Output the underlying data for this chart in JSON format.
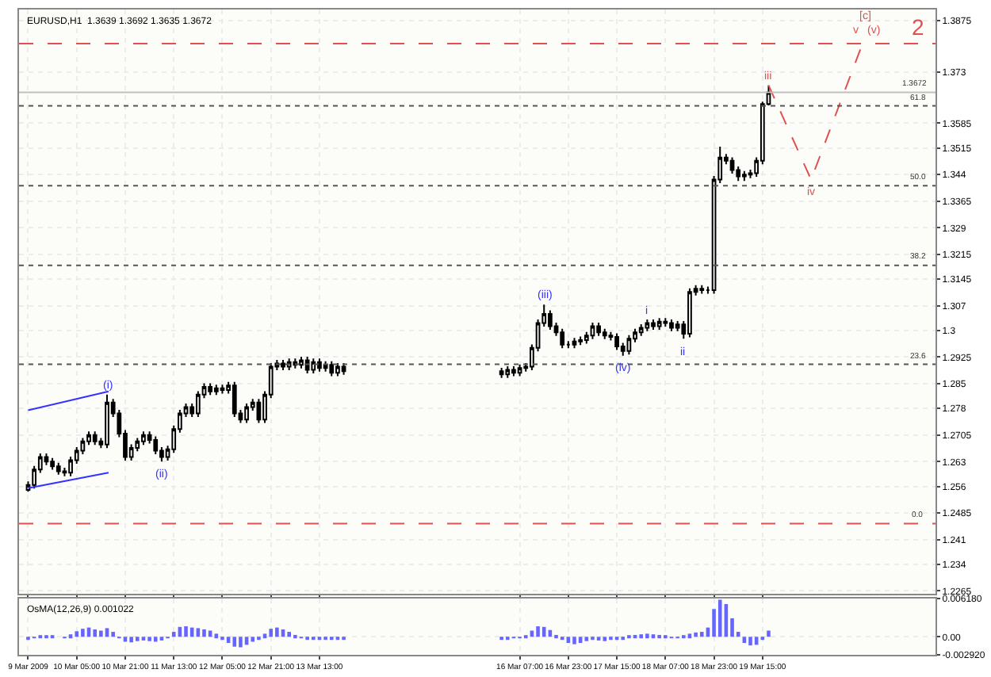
{
  "chart_data": [
    {
      "type": "candlestick",
      "title": "EURUSD,H1  1.3639 1.3692 1.3635 1.3672",
      "color": "#000000",
      "x": [
        "2009-03-09T13:00",
        "2009-03-09T15:00",
        "2009-03-09T17:00",
        "2009-03-09T19:00",
        "2009-03-09T21:00",
        "2009-03-09T23:00",
        "2009-03-10T01:00",
        "2009-03-10T03:00",
        "2009-03-10T05:00",
        "2009-03-10T07:00",
        "2009-03-10T09:00",
        "2009-03-10T11:00",
        "2009-03-10T13:00",
        "2009-03-10T15:00",
        "2009-03-10T17:00",
        "2009-03-10T19:00",
        "2009-03-10T21:00",
        "2009-03-10T23:00",
        "2009-03-11T01:00",
        "2009-03-11T03:00",
        "2009-03-11T05:00",
        "2009-03-11T07:00",
        "2009-03-11T09:00",
        "2009-03-11T11:00",
        "2009-03-11T13:00",
        "2009-03-11T15:00",
        "2009-03-11T17:00",
        "2009-03-11T19:00",
        "2009-03-11T21:00",
        "2009-03-11T23:00",
        "2009-03-12T01:00",
        "2009-03-12T03:00",
        "2009-03-12T05:00",
        "2009-03-12T07:00",
        "2009-03-12T09:00",
        "2009-03-12T11:00",
        "2009-03-12T13:00",
        "2009-03-12T15:00",
        "2009-03-12T17:00",
        "2009-03-12T19:00",
        "2009-03-12T21:00",
        "2009-03-12T23:00",
        "2009-03-13T01:00",
        "2009-03-13T03:00",
        "2009-03-13T05:00",
        "2009-03-13T07:00",
        "2009-03-13T09:00",
        "2009-03-13T11:00",
        "2009-03-13T13:00",
        "2009-03-13T15:00",
        "2009-03-13T17:00",
        "2009-03-13T19:00",
        "2009-03-13T21:00",
        "2009-03-16T01:00",
        "2009-03-16T03:00",
        "2009-03-16T05:00",
        "2009-03-16T07:00",
        "2009-03-16T09:00",
        "2009-03-16T11:00",
        "2009-03-16T13:00",
        "2009-03-16T15:00",
        "2009-03-16T17:00",
        "2009-03-16T19:00",
        "2009-03-16T21:00",
        "2009-03-16T23:00",
        "2009-03-17T01:00",
        "2009-03-17T03:00",
        "2009-03-17T05:00",
        "2009-03-17T07:00",
        "2009-03-17T09:00",
        "2009-03-17T11:00",
        "2009-03-17T13:00",
        "2009-03-17T15:00",
        "2009-03-17T17:00",
        "2009-03-17T19:00",
        "2009-03-17T21:00",
        "2009-03-17T23:00",
        "2009-03-18T01:00",
        "2009-03-18T03:00",
        "2009-03-18T05:00",
        "2009-03-18T07:00",
        "2009-03-18T09:00",
        "2009-03-18T11:00",
        "2009-03-18T13:00",
        "2009-03-18T15:00",
        "2009-03-18T17:00",
        "2009-03-18T19:00",
        "2009-03-18T21:00",
        "2009-03-18T23:00",
        "2009-03-19T01:00",
        "2009-03-19T03:00",
        "2009-03-19T05:00",
        "2009-03-19T07:00",
        "2009-03-19T09:00",
        "2009-03-19T11:00",
        "2009-03-19T13:00",
        "2009-03-19T15:00",
        "2009-03-19T17:00"
      ],
      "ohlc": [
        [
          1.255,
          1.2574,
          1.2545,
          1.2564
        ],
        [
          1.2564,
          1.2618,
          1.2554,
          1.2608
        ],
        [
          1.2608,
          1.2653,
          1.2598,
          1.2643
        ],
        [
          1.2643,
          1.2653,
          1.262,
          1.263
        ],
        [
          1.263,
          1.264,
          1.2607,
          1.2617
        ],
        [
          1.2617,
          1.2627,
          1.2593,
          1.2603
        ],
        [
          1.2603,
          1.2613,
          1.2589,
          1.2599
        ],
        [
          1.2599,
          1.2644,
          1.2589,
          1.2634
        ],
        [
          1.2634,
          1.2671,
          1.2624,
          1.2661
        ],
        [
          1.2661,
          1.2697,
          1.2651,
          1.2687
        ],
        [
          1.2687,
          1.2715,
          1.2677,
          1.2705
        ],
        [
          1.2705,
          1.2715,
          1.2677,
          1.2687
        ],
        [
          1.2687,
          1.2697,
          1.2668,
          1.2678
        ],
        [
          1.2678,
          1.2819,
          1.2668,
          1.2797
        ],
        [
          1.2797,
          1.2807,
          1.2756,
          1.2766
        ],
        [
          1.2766,
          1.2776,
          1.2699,
          1.2709
        ],
        [
          1.2709,
          1.2719,
          1.2633,
          1.2643
        ],
        [
          1.2643,
          1.2679,
          1.2633,
          1.2669
        ],
        [
          1.2669,
          1.2697,
          1.2659,
          1.2687
        ],
        [
          1.2687,
          1.2715,
          1.2677,
          1.2705
        ],
        [
          1.2705,
          1.2715,
          1.2681,
          1.2691
        ],
        [
          1.2691,
          1.2701,
          1.2651,
          1.2661
        ],
        [
          1.2661,
          1.2671,
          1.263,
          1.2643
        ],
        [
          1.2643,
          1.2675,
          1.2633,
          1.2665
        ],
        [
          1.2665,
          1.2732,
          1.2655,
          1.2722
        ],
        [
          1.2722,
          1.2776,
          1.2712,
          1.2766
        ],
        [
          1.2766,
          1.2794,
          1.2756,
          1.2784
        ],
        [
          1.2784,
          1.2794,
          1.2756,
          1.2766
        ],
        [
          1.2766,
          1.2829,
          1.2756,
          1.2819
        ],
        [
          1.2819,
          1.2851,
          1.2809,
          1.2841
        ],
        [
          1.2841,
          1.2851,
          1.2818,
          1.2828
        ],
        [
          1.2828,
          1.2847,
          1.2818,
          1.2837
        ],
        [
          1.2837,
          1.2847,
          1.2822,
          1.2832
        ],
        [
          1.2832,
          1.2855,
          1.2822,
          1.2845
        ],
        [
          1.2845,
          1.2855,
          1.2756,
          1.2766
        ],
        [
          1.2766,
          1.2776,
          1.2739,
          1.2749
        ],
        [
          1.2749,
          1.2794,
          1.2739,
          1.2784
        ],
        [
          1.2784,
          1.2807,
          1.2774,
          1.2797
        ],
        [
          1.2797,
          1.2807,
          1.2739,
          1.2749
        ],
        [
          1.2749,
          1.2829,
          1.2739,
          1.2819
        ],
        [
          1.2819,
          1.2908,
          1.2809,
          1.2898
        ],
        [
          1.2898,
          1.2917,
          1.2888,
          1.2907
        ],
        [
          1.2907,
          1.2917,
          1.2888,
          1.2898
        ],
        [
          1.2898,
          1.2921,
          1.2888,
          1.2911
        ],
        [
          1.2911,
          1.2921,
          1.2893,
          1.2903
        ],
        [
          1.2903,
          1.2926,
          1.2893,
          1.2916
        ],
        [
          1.2916,
          1.2926,
          1.2879,
          1.2889
        ],
        [
          1.2889,
          1.2921,
          1.2879,
          1.2911
        ],
        [
          1.2911,
          1.2921,
          1.2884,
          1.2894
        ],
        [
          1.2894,
          1.2913,
          1.2884,
          1.2903
        ],
        [
          1.2903,
          1.2913,
          1.2871,
          1.2881
        ],
        [
          1.2881,
          1.2908,
          1.2871,
          1.2898
        ],
        [
          1.2898,
          1.2908,
          1.2875,
          1.2885
        ],
        [
          1.2885,
          1.2895,
          1.2866,
          1.2876
        ],
        [
          1.2876,
          1.2899,
          1.2866,
          1.2889
        ],
        [
          1.2889,
          1.2899,
          1.2871,
          1.2881
        ],
        [
          1.2881,
          1.2904,
          1.2871,
          1.2894
        ],
        [
          1.2894,
          1.2908,
          1.2884,
          1.2898
        ],
        [
          1.2898,
          1.2961,
          1.2888,
          1.2951
        ],
        [
          1.2951,
          1.3031,
          1.2941,
          1.3021
        ],
        [
          1.3021,
          1.3073,
          1.3011,
          1.3047
        ],
        [
          1.3047,
          1.3057,
          1.3002,
          1.3012
        ],
        [
          1.3012,
          1.3022,
          1.2985,
          1.2995
        ],
        [
          1.2995,
          1.3005,
          1.295,
          1.296
        ],
        [
          1.296,
          1.297,
          1.295,
          1.296
        ],
        [
          1.296,
          1.2979,
          1.295,
          1.2969
        ],
        [
          1.2969,
          1.2983,
          1.2959,
          1.2973
        ],
        [
          1.2973,
          1.2996,
          1.2963,
          1.2986
        ],
        [
          1.2986,
          1.3022,
          1.2976,
          1.3012
        ],
        [
          1.3012,
          1.3022,
          1.2985,
          1.2995
        ],
        [
          1.2995,
          1.3005,
          1.2976,
          1.2986
        ],
        [
          1.2986,
          1.2996,
          1.2972,
          1.2982
        ],
        [
          1.2982,
          1.2992,
          1.2945,
          1.2955
        ],
        [
          1.2955,
          1.2965,
          1.2929,
          1.2942
        ],
        [
          1.2942,
          1.2987,
          1.2932,
          1.2977
        ],
        [
          1.2977,
          1.3005,
          1.2967,
          1.2995
        ],
        [
          1.2995,
          1.3018,
          1.2985,
          1.3008
        ],
        [
          1.3008,
          1.3031,
          1.2998,
          1.3021
        ],
        [
          1.3021,
          1.3031,
          1.3002,
          1.3012
        ],
        [
          1.3012,
          1.3035,
          1.3002,
          1.3025
        ],
        [
          1.3025,
          1.3035,
          1.3011,
          1.3021
        ],
        [
          1.3021,
          1.3031,
          1.2998,
          1.3008
        ],
        [
          1.3008,
          1.3027,
          1.2998,
          1.3017
        ],
        [
          1.3017,
          1.3027,
          1.2977,
          1.2991
        ],
        [
          1.2991,
          1.3119,
          1.2981,
          1.3109
        ],
        [
          1.3109,
          1.3128,
          1.3099,
          1.3118
        ],
        [
          1.3118,
          1.3128,
          1.3104,
          1.3114
        ],
        [
          1.3114,
          1.3124,
          1.3104,
          1.3114
        ],
        [
          1.3114,
          1.3436,
          1.3104,
          1.3426
        ],
        [
          1.3426,
          1.3519,
          1.3416,
          1.3488
        ],
        [
          1.3488,
          1.3498,
          1.3469,
          1.3479
        ],
        [
          1.3479,
          1.3489,
          1.3443,
          1.3453
        ],
        [
          1.3453,
          1.3463,
          1.3422,
          1.3435
        ],
        [
          1.3435,
          1.345,
          1.3422,
          1.344
        ],
        [
          1.344,
          1.3454,
          1.343,
          1.3444
        ],
        [
          1.3444,
          1.3489,
          1.3434,
          1.3479
        ],
        [
          1.3479,
          1.3646,
          1.3469,
          1.3639
        ],
        [
          1.3639,
          1.3692,
          1.3635,
          1.3672
        ]
      ],
      "series": [
        {
          "type": "line",
          "color": "#3333ff",
          "x": [
            "2009-03-09T13:00",
            "2009-03-10T15:30"
          ],
          "values": [
            1.2775,
            1.2828
          ]
        },
        {
          "type": "line",
          "color": "#3333ff",
          "x": [
            "2009-03-09T13:00",
            "2009-03-10T15:30"
          ],
          "values": [
            1.2555,
            1.2599
          ]
        },
        {
          "type": "line",
          "color": "#e05050",
          "line_style": "dashed",
          "x": [
            "2009-03-19T17:00",
            "2009-03-20T07:00",
            "2009-03-21T00:30"
          ],
          "values": [
            1.3692,
            1.3426,
            1.3822
          ]
        }
      ],
      "xlim": [
        "2009-03-09T10:00",
        "2009-03-22T00:00"
      ],
      "xticks": [
        {
          "value": "2009-03-09T13:00",
          "label": null
        },
        {
          "value": "2009-03-10T05:00",
          "label": null
        },
        {
          "value": "2009-03-10T21:00",
          "label": null
        },
        {
          "value": "2009-03-11T13:00",
          "label": null
        },
        {
          "value": "2009-03-12T05:00",
          "label": null
        },
        {
          "value": "2009-03-12T21:00",
          "label": null
        },
        {
          "value": "2009-03-13T13:00",
          "label": null
        },
        {
          "value": "2009-03-16T07:00",
          "label": null
        },
        {
          "value": "2009-03-16T23:00",
          "label": null
        },
        {
          "value": "2009-03-17T15:00",
          "label": null
        },
        {
          "value": "2009-03-18T07:00",
          "label": null
        },
        {
          "value": "2009-03-18T23:00",
          "label": null
        },
        {
          "value": "2009-03-19T15:00",
          "label": null
        }
      ],
      "ylim": [
        1.2256,
        1.3906
      ],
      "yticks": [
        1.3875,
        1.373,
        1.3585,
        1.3515,
        1.344,
        1.3365,
        1.329,
        1.3215,
        1.3145,
        1.307,
        1.3,
        1.2925,
        1.285,
        1.278,
        1.2705,
        1.263,
        1.256,
        1.2485,
        1.241,
        1.234,
        1.2265
      ],
      "ref_lines": [
        {
          "axis": "y",
          "value": 1.381,
          "color": "#e05050",
          "line_style": "dashed"
        },
        {
          "axis": "y",
          "value": 1.3672,
          "label": "1.3672",
          "color": "#c0c0c0",
          "line_style": "solid"
        },
        {
          "axis": "y",
          "value": 1.3634,
          "color": "#555555",
          "line_style": "dotted"
        },
        {
          "axis": "y",
          "value": 1.3409,
          "color": "#555555",
          "line_style": "dotted"
        },
        {
          "axis": "y",
          "value": 1.3184,
          "color": "#555555",
          "line_style": "dotted"
        },
        {
          "axis": "y",
          "value": 1.2905,
          "color": "#555555",
          "line_style": "dotted"
        },
        {
          "axis": "y",
          "value": 1.2455,
          "color": "#e05050",
          "line_style": "dashed"
        }
      ],
      "annotations": [
        {
          "text": "(i)",
          "x": "2009-03-10T15:00",
          "y": 1.2819
        },
        {
          "text": "(ii)",
          "x": "2009-03-11T09:00",
          "y": 1.263
        },
        {
          "text": "(iii)",
          "x": "2009-03-16T15:00",
          "y": 1.3073
        },
        {
          "text": "(iv)",
          "x": "2009-03-17T17:00",
          "y": 1.2929
        },
        {
          "text": "i",
          "x": "2009-03-18T01:00",
          "y": 1.3031
        },
        {
          "text": "ii",
          "x": "2009-03-18T13:00",
          "y": 1.2977
        },
        {
          "text": "iii",
          "x": "2009-03-19T17:00",
          "y": 1.3692
        },
        {
          "text": "iv",
          "x": "2009-03-20T07:00",
          "y": 1.3426
        },
        {
          "text": "v",
          "x": "2009-03-21T00:30",
          "y": 1.3822
        },
        {
          "text": "(v)",
          "x": "2009-03-21T00:30",
          "y": 1.3822
        },
        {
          "text": "[c]",
          "x": "2009-03-21T00:30",
          "y": 1.3822
        },
        {
          "text": "2",
          "x": "2009-03-21T18:00",
          "y": 1.381
        },
        {
          "text": "61.8",
          "x": "2009-03-21T18:00",
          "y": 1.3634
        },
        {
          "text": "50.0",
          "x": "2009-03-21T18:00",
          "y": 1.3409
        },
        {
          "text": "38.2",
          "x": "2009-03-21T18:00",
          "y": 1.3184
        },
        {
          "text": "23.6",
          "x": "2009-03-21T18:00",
          "y": 1.2905
        },
        {
          "text": "0.0",
          "x": "2009-03-21T18:00",
          "y": 1.2455
        }
      ],
      "grid": true,
      "tick_labels": "y"
    },
    {
      "type": "bar",
      "title": "OsMA(12,26,9) 0.001022",
      "color": "#6666ff",
      "x": [
        "2009-03-09T13:00",
        "2009-03-09T15:00",
        "2009-03-09T17:00",
        "2009-03-09T19:00",
        "2009-03-09T21:00",
        "2009-03-09T23:00",
        "2009-03-10T01:00",
        "2009-03-10T03:00",
        "2009-03-10T05:00",
        "2009-03-10T07:00",
        "2009-03-10T09:00",
        "2009-03-10T11:00",
        "2009-03-10T13:00",
        "2009-03-10T15:00",
        "2009-03-10T17:00",
        "2009-03-10T19:00",
        "2009-03-10T21:00",
        "2009-03-10T23:00",
        "2009-03-11T01:00",
        "2009-03-11T03:00",
        "2009-03-11T05:00",
        "2009-03-11T07:00",
        "2009-03-11T09:00",
        "2009-03-11T11:00",
        "2009-03-11T13:00",
        "2009-03-11T15:00",
        "2009-03-11T17:00",
        "2009-03-11T19:00",
        "2009-03-11T21:00",
        "2009-03-11T23:00",
        "2009-03-12T01:00",
        "2009-03-12T03:00",
        "2009-03-12T05:00",
        "2009-03-12T07:00",
        "2009-03-12T09:00",
        "2009-03-12T11:00",
        "2009-03-12T13:00",
        "2009-03-12T15:00",
        "2009-03-12T17:00",
        "2009-03-12T19:00",
        "2009-03-12T21:00",
        "2009-03-12T23:00",
        "2009-03-13T01:00",
        "2009-03-13T03:00",
        "2009-03-13T05:00",
        "2009-03-13T07:00",
        "2009-03-13T09:00",
        "2009-03-13T11:00",
        "2009-03-13T13:00",
        "2009-03-13T15:00",
        "2009-03-13T17:00",
        "2009-03-13T19:00",
        "2009-03-13T21:00",
        "2009-03-16T01:00",
        "2009-03-16T03:00",
        "2009-03-16T05:00",
        "2009-03-16T07:00",
        "2009-03-16T09:00",
        "2009-03-16T11:00",
        "2009-03-16T13:00",
        "2009-03-16T15:00",
        "2009-03-16T17:00",
        "2009-03-16T19:00",
        "2009-03-16T21:00",
        "2009-03-16T23:00",
        "2009-03-17T01:00",
        "2009-03-17T03:00",
        "2009-03-17T05:00",
        "2009-03-17T07:00",
        "2009-03-17T09:00",
        "2009-03-17T11:00",
        "2009-03-17T13:00",
        "2009-03-17T15:00",
        "2009-03-17T17:00",
        "2009-03-17T19:00",
        "2009-03-17T21:00",
        "2009-03-17T23:00",
        "2009-03-18T01:00",
        "2009-03-18T03:00",
        "2009-03-18T05:00",
        "2009-03-18T07:00",
        "2009-03-18T09:00",
        "2009-03-18T11:00",
        "2009-03-18T13:00",
        "2009-03-18T15:00",
        "2009-03-18T17:00",
        "2009-03-18T19:00",
        "2009-03-18T21:00",
        "2009-03-18T23:00",
        "2009-03-19T01:00",
        "2009-03-19T03:00",
        "2009-03-19T05:00",
        "2009-03-19T07:00",
        "2009-03-19T09:00",
        "2009-03-19T11:00",
        "2009-03-19T13:00",
        "2009-03-19T15:00",
        "2009-03-19T17:00"
      ],
      "values": [
        -0.0003,
        -0.0002,
        0.0001,
        0.0002,
        0.0001,
        0.0,
        -0.0001,
        0.0004,
        0.0009,
        0.0013,
        0.0015,
        0.0012,
        0.001,
        0.0014,
        0.0008,
        -0.0002,
        -0.0008,
        -0.0009,
        -0.0007,
        -0.0006,
        -0.0007,
        -0.0008,
        -0.0006,
        -0.0001,
        0.0008,
        0.0016,
        0.0017,
        0.0015,
        0.0014,
        0.0012,
        0.001,
        0.0005,
        -0.0003,
        -0.001,
        -0.0016,
        -0.0017,
        -0.0013,
        -0.0008,
        -0.0004,
        0.0005,
        0.0013,
        0.0015,
        0.0012,
        0.0008,
        0.0003,
        -0.0002,
        -0.0004,
        -0.0005,
        -0.0005,
        -0.0004,
        -0.0004,
        -0.0003,
        -0.0003,
        -0.0004,
        -0.0003,
        -0.0002,
        -0.0001,
        0.0002,
        0.001,
        0.0017,
        0.0016,
        0.0011,
        0.0003,
        -0.0005,
        -0.001,
        -0.0012,
        -0.001,
        -0.0007,
        -0.0005,
        -0.0006,
        -0.0007,
        -0.0005,
        -0.0003,
        -0.0005,
        0.0002,
        0.0003,
        0.0004,
        0.0005,
        0.0004,
        0.0003,
        0.0001,
        -0.0002,
        -0.0001,
        0.0001,
        0.0005,
        0.0007,
        0.0008,
        0.0015,
        0.0045,
        0.006,
        0.0053,
        0.003,
        0.0008,
        -0.001,
        -0.0014,
        -0.0013,
        -0.0005,
        0.001
      ],
      "xlim": [
        "2009-03-09T10:00",
        "2009-03-22T00:00"
      ],
      "xticks": [
        {
          "value": "2009-03-09T13:00",
          "label": "9 Mar 2009"
        },
        {
          "value": "2009-03-10T05:00",
          "label": "10 Mar 05:00"
        },
        {
          "value": "2009-03-10T21:00",
          "label": "10 Mar 21:00"
        },
        {
          "value": "2009-03-11T13:00",
          "label": "11 Mar 13:00"
        },
        {
          "value": "2009-03-12T05:00",
          "label": "12 Mar 05:00"
        },
        {
          "value": "2009-03-12T21:00",
          "label": "12 Mar 21:00"
        },
        {
          "value": "2009-03-13T13:00",
          "label": "13 Mar 13:00"
        },
        {
          "value": "2009-03-16T07:00",
          "label": "16 Mar 07:00"
        },
        {
          "value": "2009-03-16T23:00",
          "label": "16 Mar 23:00"
        },
        {
          "value": "2009-03-17T15:00",
          "label": "17 Mar 15:00"
        },
        {
          "value": "2009-03-18T07:00",
          "label": "18 Mar 07:00"
        },
        {
          "value": "2009-03-18T23:00",
          "label": "18 Mar 23:00"
        },
        {
          "value": "2009-03-19T15:00",
          "label": "19 Mar 15:00"
        }
      ],
      "ylim": [
        -0.00292,
        0.00618
      ],
      "yticks": [
        {
          "value": 0.00618,
          "label": "0.006180"
        },
        {
          "value": 0,
          "label": "0.00"
        },
        {
          "value": -0.00292,
          "label": "-0.002920"
        }
      ],
      "grid": true
    }
  ]
}
